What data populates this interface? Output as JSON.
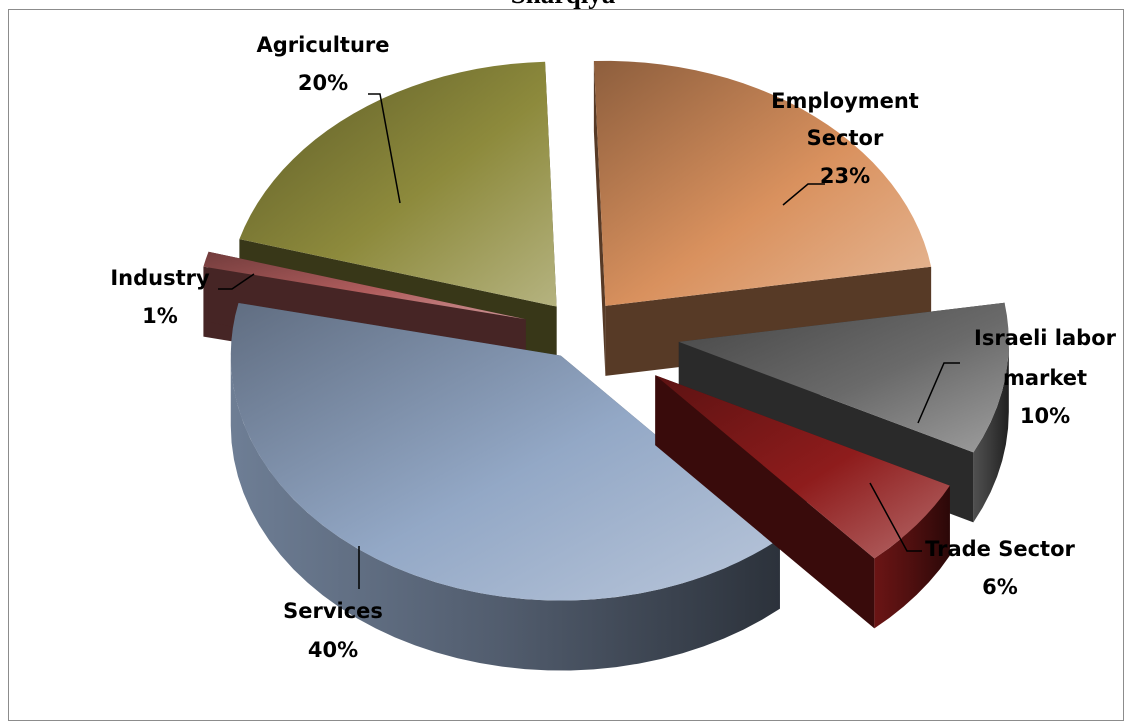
{
  "chart_data": {
    "type": "pie",
    "title": "Sharqiya",
    "style": "3d-exploded",
    "slices": [
      {
        "label": "Employment Sector",
        "value": 23,
        "display": "23%",
        "color": "#d9915e"
      },
      {
        "label": "Israeli labor market",
        "value": 10,
        "display": "10%",
        "color": "#6a6a6a"
      },
      {
        "label": "Trade Sector",
        "value": 6,
        "display": "6%",
        "color": "#8e1c1c"
      },
      {
        "label": "Services",
        "value": 40,
        "display": "40%",
        "color": "#93a8c6"
      },
      {
        "label": "Industry",
        "value": 1,
        "display": "1%",
        "color": "#b05d5d"
      },
      {
        "label": "Agriculture",
        "value": 20,
        "display": "20%",
        "color": "#8d8a3c"
      }
    ]
  }
}
